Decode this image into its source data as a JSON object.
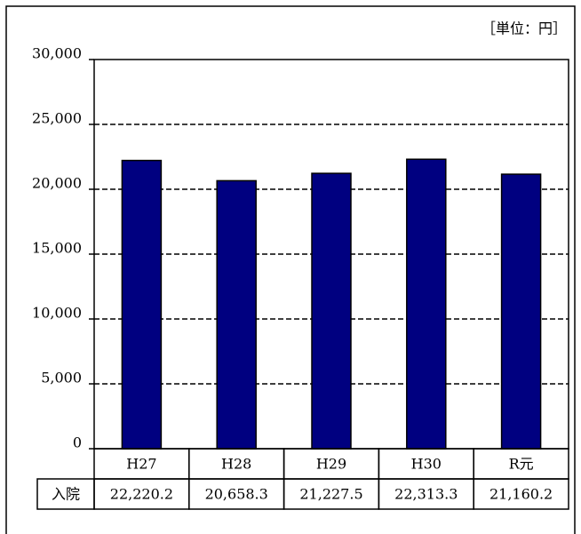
{
  "chart_data": {
    "type": "bar",
    "annotation": "［単位：円］",
    "categories": [
      "H27",
      "H28",
      "H29",
      "H30",
      "R元"
    ],
    "series": [
      {
        "name": "入院",
        "color": "#000080",
        "values": [
          22220.2,
          20658.3,
          21227.5,
          22313.3,
          21160.2
        ],
        "value_labels": [
          "22,220.2",
          "20,658.3",
          "21,227.5",
          "22,313.3",
          "21,160.2"
        ]
      }
    ],
    "ylim": [
      0,
      30000
    ],
    "yticks": [
      0,
      {
        "value": 5000,
        "label": "5,000"
      },
      {
        "value": 10000,
        "label": "10,000"
      },
      {
        "value": 15000,
        "label": "15,000"
      },
      {
        "value": 20000,
        "label": "20,000"
      },
      {
        "value": 25000,
        "label": "25,000"
      },
      {
        "value": 30000,
        "label": "30,000"
      }
    ],
    "grid": true
  }
}
